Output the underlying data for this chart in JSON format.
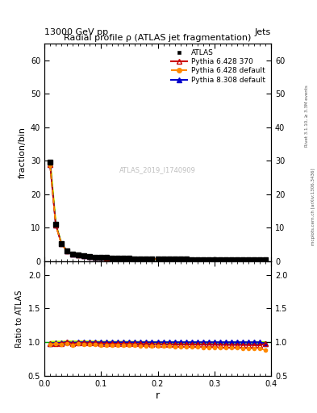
{
  "title": "Radial profile ρ (ATLAS jet fragmentation)",
  "header_left": "13000 GeV pp",
  "header_right": "Jets",
  "ylabel_main": "fraction/bin",
  "ylabel_ratio": "Ratio to ATLAS",
  "xlabel": "r",
  "watermark": "ATLAS_2019_I1740909",
  "right_label_top": "Rivet 3.1.10, ≥ 3.3M events",
  "right_label_bot": "mcplots.cern.ch [arXiv:1306.3436]",
  "ylim_main": [
    0,
    65
  ],
  "ylim_ratio": [
    0.5,
    2.2
  ],
  "yticks_main": [
    0,
    10,
    20,
    30,
    40,
    50,
    60
  ],
  "yticks_ratio": [
    0.5,
    1.0,
    1.5,
    2.0
  ],
  "r_values": [
    0.01,
    0.02,
    0.03,
    0.04,
    0.05,
    0.06,
    0.07,
    0.08,
    0.09,
    0.1,
    0.11,
    0.12,
    0.13,
    0.14,
    0.15,
    0.16,
    0.17,
    0.18,
    0.19,
    0.2,
    0.21,
    0.22,
    0.23,
    0.24,
    0.25,
    0.26,
    0.27,
    0.28,
    0.29,
    0.3,
    0.31,
    0.32,
    0.33,
    0.34,
    0.35,
    0.36,
    0.37,
    0.38,
    0.39
  ],
  "atlas_data": [
    29.5,
    11.0,
    5.3,
    3.0,
    2.2,
    1.8,
    1.6,
    1.4,
    1.25,
    1.15,
    1.05,
    0.97,
    0.91,
    0.86,
    0.82,
    0.78,
    0.75,
    0.72,
    0.69,
    0.67,
    0.65,
    0.63,
    0.61,
    0.59,
    0.57,
    0.55,
    0.54,
    0.52,
    0.51,
    0.5,
    0.49,
    0.48,
    0.47,
    0.46,
    0.45,
    0.44,
    0.43,
    0.42,
    0.42
  ],
  "atlas_err": [
    0.5,
    0.2,
    0.1,
    0.07,
    0.05,
    0.04,
    0.035,
    0.03,
    0.025,
    0.02,
    0.018,
    0.016,
    0.015,
    0.014,
    0.013,
    0.012,
    0.011,
    0.01,
    0.009,
    0.009,
    0.008,
    0.008,
    0.007,
    0.007,
    0.007,
    0.006,
    0.006,
    0.006,
    0.006,
    0.005,
    0.005,
    0.005,
    0.005,
    0.005,
    0.005,
    0.005,
    0.005,
    0.005,
    0.005
  ],
  "pythia6_370_data": [
    28.8,
    10.8,
    5.2,
    3.0,
    2.15,
    1.78,
    1.58,
    1.38,
    1.23,
    1.13,
    1.03,
    0.95,
    0.89,
    0.84,
    0.8,
    0.76,
    0.73,
    0.7,
    0.67,
    0.65,
    0.63,
    0.61,
    0.59,
    0.57,
    0.55,
    0.53,
    0.52,
    0.5,
    0.49,
    0.48,
    0.47,
    0.46,
    0.45,
    0.44,
    0.43,
    0.42,
    0.41,
    0.4,
    0.41
  ],
  "pythia6_default_data": [
    28.5,
    10.7,
    5.1,
    2.95,
    2.1,
    1.75,
    1.55,
    1.35,
    1.2,
    1.1,
    1.0,
    0.93,
    0.87,
    0.82,
    0.78,
    0.74,
    0.71,
    0.68,
    0.65,
    0.63,
    0.61,
    0.59,
    0.57,
    0.55,
    0.53,
    0.51,
    0.5,
    0.48,
    0.47,
    0.46,
    0.45,
    0.44,
    0.43,
    0.42,
    0.41,
    0.4,
    0.39,
    0.38,
    0.37
  ],
  "pythia8_default_data": [
    28.9,
    10.9,
    5.25,
    3.02,
    2.18,
    1.8,
    1.6,
    1.4,
    1.25,
    1.15,
    1.05,
    0.97,
    0.91,
    0.86,
    0.82,
    0.78,
    0.75,
    0.72,
    0.69,
    0.67,
    0.65,
    0.63,
    0.61,
    0.59,
    0.57,
    0.55,
    0.54,
    0.52,
    0.51,
    0.5,
    0.49,
    0.48,
    0.47,
    0.46,
    0.45,
    0.44,
    0.43,
    0.42,
    0.42
  ],
  "ratio_pythia6_370": [
    0.975,
    0.982,
    0.981,
    1.0,
    0.977,
    0.989,
    0.988,
    0.986,
    0.984,
    0.983,
    0.981,
    0.979,
    0.978,
    0.977,
    0.976,
    0.974,
    0.973,
    0.972,
    0.971,
    0.97,
    0.969,
    0.968,
    0.967,
    0.966,
    0.965,
    0.964,
    0.963,
    0.962,
    0.961,
    0.96,
    0.959,
    0.958,
    0.957,
    0.957,
    0.956,
    0.955,
    0.954,
    0.952,
    0.976
  ],
  "ratio_pythia6_default": [
    0.966,
    0.973,
    0.962,
    0.983,
    0.955,
    0.972,
    0.969,
    0.964,
    0.96,
    0.957,
    0.952,
    0.959,
    0.956,
    0.953,
    0.951,
    0.949,
    0.947,
    0.944,
    0.942,
    0.94,
    0.938,
    0.937,
    0.934,
    0.932,
    0.93,
    0.927,
    0.925,
    0.923,
    0.922,
    0.92,
    0.918,
    0.917,
    0.915,
    0.913,
    0.911,
    0.909,
    0.907,
    0.905,
    0.881
  ],
  "ratio_pythia8_default": [
    0.98,
    0.991,
    0.991,
    1.007,
    0.991,
    1.0,
    1.0,
    1.0,
    1.0,
    1.0,
    1.0,
    1.0,
    1.0,
    1.0,
    1.0,
    1.0,
    1.0,
    1.0,
    1.0,
    1.0,
    1.0,
    1.0,
    1.0,
    1.0,
    1.0,
    1.0,
    1.0,
    1.0,
    1.0,
    1.0,
    1.0,
    1.0,
    1.0,
    1.0,
    1.0,
    1.0,
    1.0,
    1.0,
    0.981
  ],
  "atlas_color": "#000000",
  "pythia6_370_color": "#cc0000",
  "pythia6_default_color": "#ff8800",
  "pythia8_default_color": "#0000cc",
  "band_color": "#ccff00",
  "ref_line_color": "#00aa00",
  "background_color": "#ffffff",
  "legend_labels": [
    "ATLAS",
    "Pythia 6.428 370",
    "Pythia 6.428 default",
    "Pythia 8.308 default"
  ]
}
